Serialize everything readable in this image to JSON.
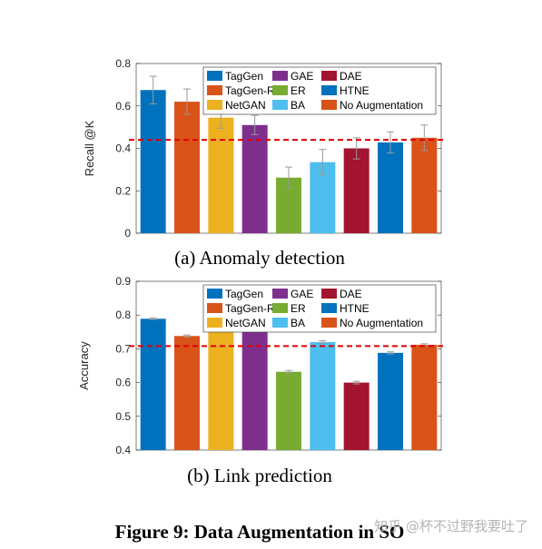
{
  "colors": {
    "TagGen": "#0072BD",
    "TagGen-R": "#D95319",
    "NetGAN": "#EDB120",
    "GAE": "#7E2F8E",
    "ER": "#77AC30",
    "BA": "#4DBEEE",
    "DAE": "#A2142F",
    "HTNE": "#0072BD",
    "No Augmentation": "#D95319",
    "reference_line": "#E00000"
  },
  "chart_data": [
    {
      "type": "bar",
      "caption": "(a) Anomaly detection",
      "ylabel": "Recall @K",
      "ylim": [
        0,
        0.8
      ],
      "yticks": [
        "0",
        "0.2",
        "0.4",
        "0.6",
        "0.8"
      ],
      "ytick_values": [
        0,
        0.2,
        0.4,
        0.6,
        0.8
      ],
      "categories": [
        "TagGen",
        "TagGen-R",
        "NetGAN",
        "GAE",
        "ER",
        "BA",
        "DAE",
        "HTNE",
        "No Augmentation"
      ],
      "values": [
        0.675,
        0.62,
        0.545,
        0.51,
        0.262,
        0.335,
        0.4,
        0.428,
        0.45
      ],
      "errors": [
        0.065,
        0.06,
        0.05,
        0.045,
        0.05,
        0.06,
        0.05,
        0.05,
        0.06
      ],
      "reference_line": 0.44,
      "legend_order": [
        "TagGen",
        "GAE",
        "DAE",
        "TagGen-R",
        "ER",
        "HTNE",
        "NetGAN",
        "BA",
        "No Augmentation"
      ]
    },
    {
      "type": "bar",
      "caption": "(b) Link prediction",
      "ylabel": "Accuracy",
      "ylim": [
        0.4,
        0.9
      ],
      "yticks": [
        "0.4",
        "0.5",
        "0.6",
        "0.7",
        "0.8",
        "0.9"
      ],
      "ytick_values": [
        0.4,
        0.5,
        0.6,
        0.7,
        0.8,
        0.9
      ],
      "categories": [
        "TagGen",
        "TagGen-R",
        "NetGAN",
        "GAE",
        "ER",
        "BA",
        "DAE",
        "HTNE",
        "No Augmentation"
      ],
      "values": [
        0.789,
        0.738,
        0.762,
        0.758,
        0.632,
        0.72,
        0.6,
        0.688,
        0.712
      ],
      "errors": [
        0.002,
        0.003,
        0.003,
        0.003,
        0.004,
        0.004,
        0.004,
        0.003,
        0.003
      ],
      "reference_line": 0.708,
      "legend_order": [
        "TagGen",
        "GAE",
        "DAE",
        "TagGen-R",
        "ER",
        "HTNE",
        "NetGAN",
        "BA",
        "No Augmentation"
      ]
    }
  ],
  "figure_caption": "Figure 9: Data Augmentation in SO",
  "watermark": "知乎 @杯不过野我要吐了"
}
